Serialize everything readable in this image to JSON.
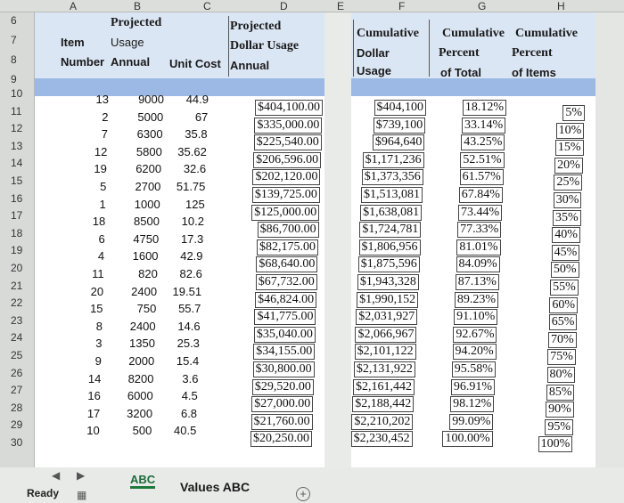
{
  "columns": [
    "A",
    "B",
    "C",
    "D",
    "E",
    "F",
    "G",
    "H"
  ],
  "row_numbers": [
    "6",
    "7",
    "8",
    "9",
    "10",
    "11",
    "12",
    "13",
    "14",
    "15",
    "16",
    "17",
    "18",
    "19",
    "20",
    "21",
    "22",
    "23",
    "24",
    "25",
    "26",
    "27",
    "28",
    "29",
    "30"
  ],
  "headers": {
    "item": [
      "Item",
      "Number"
    ],
    "projected_usage": [
      "Projected",
      "Usage",
      "Annual"
    ],
    "unit_cost": "Unit Cost",
    "projected_dollar_usage": [
      "Projected",
      "Dollar Usage",
      "Annual"
    ],
    "cumulative_dollar_usage": [
      "Cumulative",
      "Dollar",
      "Usage"
    ],
    "cumulative_percent_total": [
      "Cumulative",
      "Percent",
      "of Total"
    ],
    "cumulative_percent_items": [
      "Cumulative",
      "Percent",
      "of Items"
    ]
  },
  "rows": [
    {
      "item": "13",
      "usage": "9000",
      "cost": "44.9",
      "dollar": "$404,100.00",
      "cum_dollar": "$404,100",
      "cum_pct": "18.12%",
      "items_pct": "5%"
    },
    {
      "item": "2",
      "usage": "5000",
      "cost": "67",
      "dollar": "$335,000.00",
      "cum_dollar": "$739,100",
      "cum_pct": "33.14%",
      "items_pct": "10%"
    },
    {
      "item": "7",
      "usage": "6300",
      "cost": "35.8",
      "dollar": "$225,540.00",
      "cum_dollar": "$964,640",
      "cum_pct": "43.25%",
      "items_pct": "15%"
    },
    {
      "item": "12",
      "usage": "5800",
      "cost": "35.62",
      "dollar": "$206,596.00",
      "cum_dollar": "$1,171,236",
      "cum_pct": "52.51%",
      "items_pct": "20%"
    },
    {
      "item": "19",
      "usage": "6200",
      "cost": "32.6",
      "dollar": "$202,120.00",
      "cum_dollar": "$1,373,356",
      "cum_pct": "61.57%",
      "items_pct": "25%"
    },
    {
      "item": "5",
      "usage": "2700",
      "cost": "51.75",
      "dollar": "$139,725.00",
      "cum_dollar": "$1,513,081",
      "cum_pct": "67.84%",
      "items_pct": "30%"
    },
    {
      "item": "1",
      "usage": "1000",
      "cost": "125",
      "dollar": "$125,000.00",
      "cum_dollar": "$1,638,081",
      "cum_pct": "73.44%",
      "items_pct": "35%"
    },
    {
      "item": "18",
      "usage": "8500",
      "cost": "10.2",
      "dollar": "$86,700.00",
      "cum_dollar": "$1,724,781",
      "cum_pct": "77.33%",
      "items_pct": "40%"
    },
    {
      "item": "6",
      "usage": "4750",
      "cost": "17.3",
      "dollar": "$82,175.00",
      "cum_dollar": "$1,806,956",
      "cum_pct": "81.01%",
      "items_pct": "45%"
    },
    {
      "item": "4",
      "usage": "1600",
      "cost": "42.9",
      "dollar": "$68,640.00",
      "cum_dollar": "$1,875,596",
      "cum_pct": "84.09%",
      "items_pct": "50%"
    },
    {
      "item": "11",
      "usage": "820",
      "cost": "82.6",
      "dollar": "$67,732.00",
      "cum_dollar": "$1,943,328",
      "cum_pct": "87.13%",
      "items_pct": "55%"
    },
    {
      "item": "20",
      "usage": "2400",
      "cost": "19.51",
      "dollar": "$46,824.00",
      "cum_dollar": "$1,990,152",
      "cum_pct": "89.23%",
      "items_pct": "60%"
    },
    {
      "item": "15",
      "usage": "750",
      "cost": "55.7",
      "dollar": "$41,775.00",
      "cum_dollar": "$2,031,927",
      "cum_pct": "91.10%",
      "items_pct": "65%"
    },
    {
      "item": "8",
      "usage": "2400",
      "cost": "14.6",
      "dollar": "$35,040.00",
      "cum_dollar": "$2,066,967",
      "cum_pct": "92.67%",
      "items_pct": "70%"
    },
    {
      "item": "3",
      "usage": "1350",
      "cost": "25.3",
      "dollar": "$34,155.00",
      "cum_dollar": "$2,101,122",
      "cum_pct": "94.20%",
      "items_pct": "75%"
    },
    {
      "item": "9",
      "usage": "2000",
      "cost": "15.4",
      "dollar": "$30,800.00",
      "cum_dollar": "$2,131,922",
      "cum_pct": "95.58%",
      "items_pct": "80%"
    },
    {
      "item": "14",
      "usage": "8200",
      "cost": "3.6",
      "dollar": "$29,520.00",
      "cum_dollar": "$2,161,442",
      "cum_pct": "96.91%",
      "items_pct": "85%"
    },
    {
      "item": "16",
      "usage": "6000",
      "cost": "4.5",
      "dollar": "$27,000.00",
      "cum_dollar": "$2,188,442",
      "cum_pct": "98.12%",
      "items_pct": "90%"
    },
    {
      "item": "17",
      "usage": "3200",
      "cost": "6.8",
      "dollar": "$21,760.00",
      "cum_dollar": "$2,210,202",
      "cum_pct": "99.09%",
      "items_pct": "95%"
    },
    {
      "item": "10",
      "usage": "500",
      "cost": "40.5",
      "dollar": "$20,250.00",
      "cum_dollar": "$2,230,452",
      "cum_pct": "100.00%",
      "items_pct": "100%"
    }
  ],
  "tabs": [
    "ABC",
    "Values ABC"
  ],
  "status": "Ready",
  "add_sheet_label": "+"
}
